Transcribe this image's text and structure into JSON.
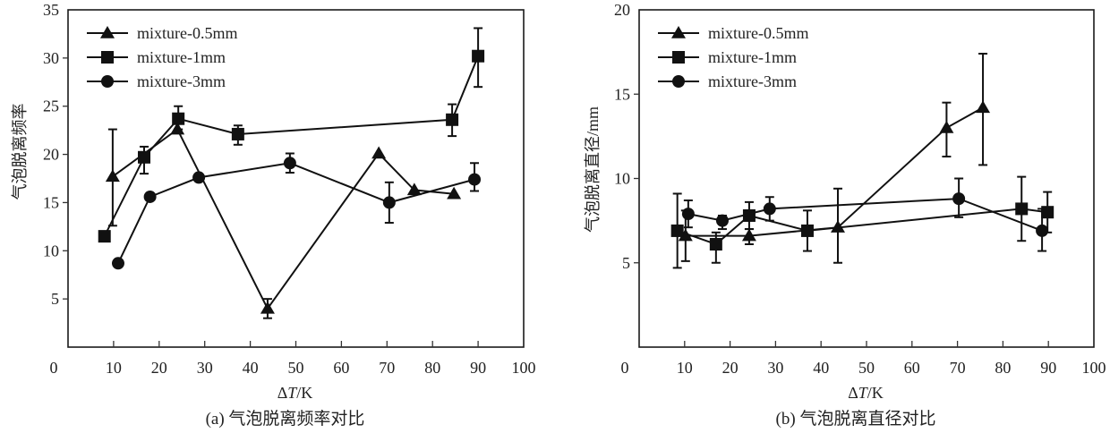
{
  "chart_data": [
    {
      "id": "a",
      "type": "line",
      "title": "",
      "caption": "(a) 气泡脱离频率对比",
      "xlabel": "ΔT/K",
      "ylabel": "气泡脱离频率",
      "xlim": [
        0,
        100
      ],
      "ylim": [
        0,
        35
      ],
      "xticks": [
        0,
        10,
        20,
        30,
        40,
        50,
        60,
        70,
        80,
        90,
        100
      ],
      "yticks": [
        5,
        10,
        15,
        20,
        25,
        30,
        35
      ],
      "grid": false,
      "legend_position": "top-left",
      "series": [
        {
          "name": "mixture-0.5mm",
          "marker": "triangle",
          "points": [
            {
              "x": 9.8,
              "y": 17.7,
              "err_hi": 22.6,
              "err_lo": 12.6
            },
            {
              "x": 24.0,
              "y": 22.6
            },
            {
              "x": 43.8,
              "y": 4.0,
              "err_hi": 5.0,
              "err_lo": 3.0
            },
            {
              "x": 68.2,
              "y": 20.1
            },
            {
              "x": 76.0,
              "y": 16.3
            },
            {
              "x": 84.7,
              "y": 15.9
            }
          ]
        },
        {
          "name": "mixture-1mm",
          "marker": "square",
          "points": [
            {
              "x": 8.0,
              "y": 11.5
            },
            {
              "x": 16.7,
              "y": 19.7,
              "err_hi": 20.8,
              "err_lo": 18.0
            },
            {
              "x": 24.2,
              "y": 23.7,
              "err_hi": 25.0,
              "err_lo": 22.6
            },
            {
              "x": 37.3,
              "y": 22.1,
              "err_hi": 23.0,
              "err_lo": 21.0
            },
            {
              "x": 84.3,
              "y": 23.6,
              "err_hi": 25.2,
              "err_lo": 21.9
            },
            {
              "x": 90.0,
              "y": 30.2,
              "err_hi": 33.1,
              "err_lo": 27.0
            }
          ]
        },
        {
          "name": "mixture-3mm",
          "marker": "circle",
          "points": [
            {
              "x": 11.0,
              "y": 8.7
            },
            {
              "x": 18.0,
              "y": 15.6
            },
            {
              "x": 28.7,
              "y": 17.6
            },
            {
              "x": 48.7,
              "y": 19.1,
              "err_hi": 20.1,
              "err_lo": 18.1
            },
            {
              "x": 70.5,
              "y": 15.0,
              "err_hi": 17.1,
              "err_lo": 12.9
            },
            {
              "x": 89.2,
              "y": 17.4,
              "err_hi": 19.1,
              "err_lo": 16.2
            }
          ]
        }
      ]
    },
    {
      "id": "b",
      "type": "line",
      "title": "",
      "caption": "(b) 气泡脱离直径对比",
      "xlabel": "ΔT/K",
      "ylabel": "气泡脱离直径/mm",
      "xlim": [
        0,
        100
      ],
      "ylim": [
        0,
        20
      ],
      "xticks": [
        0,
        10,
        20,
        30,
        40,
        50,
        60,
        70,
        80,
        90,
        100
      ],
      "yticks": [
        5,
        10,
        15,
        20
      ],
      "grid": false,
      "legend_position": "top-left",
      "series": [
        {
          "name": "mixture-0.5mm",
          "marker": "triangle",
          "points": [
            {
              "x": 10.2,
              "y": 6.6,
              "err_hi": 8.1,
              "err_lo": 5.1
            },
            {
              "x": 24.2,
              "y": 6.6,
              "err_hi": 7.0,
              "err_lo": 6.1
            },
            {
              "x": 43.7,
              "y": 7.1,
              "err_hi": 9.4,
              "err_lo": 5.0
            },
            {
              "x": 67.6,
              "y": 13.0,
              "err_hi": 14.5,
              "err_lo": 11.3
            },
            {
              "x": 75.6,
              "y": 14.2,
              "err_hi": 17.4,
              "err_lo": 10.8
            }
          ]
        },
        {
          "name": "mixture-1mm",
          "marker": "square",
          "points": [
            {
              "x": 8.4,
              "y": 6.9,
              "err_hi": 9.1,
              "err_lo": 4.7
            },
            {
              "x": 16.9,
              "y": 6.1,
              "err_hi": 6.8,
              "err_lo": 5.0
            },
            {
              "x": 24.2,
              "y": 7.8,
              "err_hi": 8.6,
              "err_lo": 7.0
            },
            {
              "x": 37.0,
              "y": 6.9,
              "err_hi": 8.1,
              "err_lo": 5.7
            },
            {
              "x": 84.1,
              "y": 8.2,
              "err_hi": 10.1,
              "err_lo": 6.3
            },
            {
              "x": 89.8,
              "y": 8.0,
              "err_hi": 9.2,
              "err_lo": 6.8
            }
          ]
        },
        {
          "name": "mixture-3mm",
          "marker": "circle",
          "points": [
            {
              "x": 10.8,
              "y": 7.9,
              "err_hi": 8.7,
              "err_lo": 7.1
            },
            {
              "x": 18.3,
              "y": 7.5,
              "err_hi": 7.8,
              "err_lo": 7.0
            },
            {
              "x": 28.7,
              "y": 8.2,
              "err_hi": 8.9,
              "err_lo": 7.5
            },
            {
              "x": 70.3,
              "y": 8.8,
              "err_hi": 10.0,
              "err_lo": 7.7
            },
            {
              "x": 88.6,
              "y": 6.9,
              "err_hi": 8.2,
              "err_lo": 5.7
            }
          ]
        }
      ]
    }
  ]
}
